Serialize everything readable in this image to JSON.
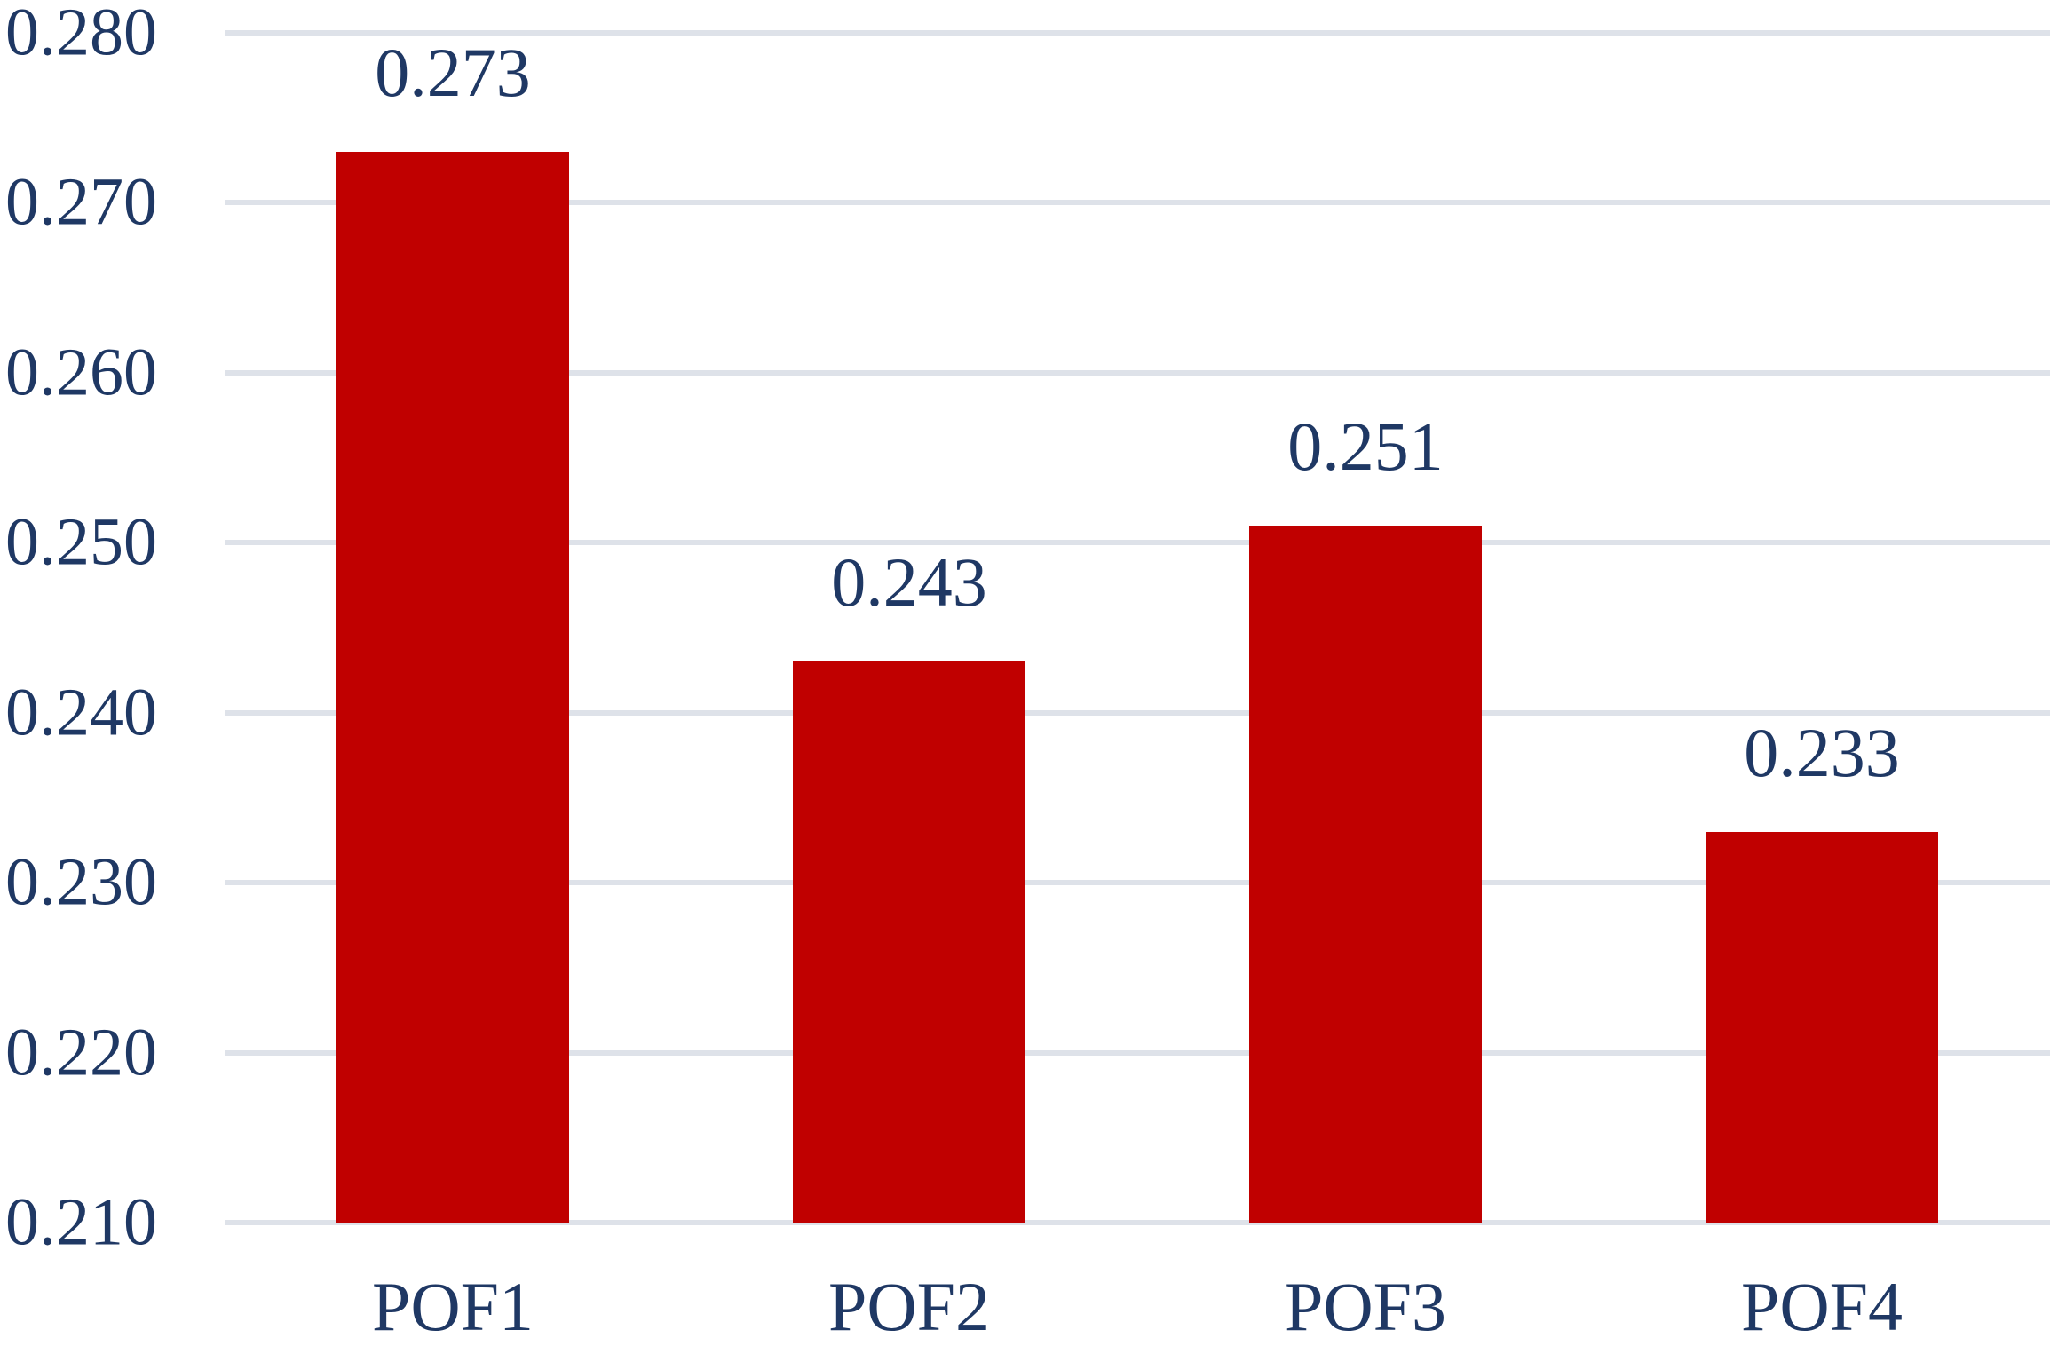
{
  "chart_data": {
    "type": "bar",
    "categories": [
      "POF1",
      "POF2",
      "POF3",
      "POF4"
    ],
    "values": [
      0.273,
      0.243,
      0.251,
      0.233
    ],
    "data_labels": [
      "0.273",
      "0.243",
      "0.251",
      "0.233"
    ],
    "y_ticks": [
      "0.280",
      "0.270",
      "0.260",
      "0.250",
      "0.240",
      "0.230",
      "0.220",
      "0.210"
    ],
    "ylim": [
      0.21,
      0.28
    ],
    "title": "",
    "xlabel": "",
    "ylabel": "",
    "grid": true,
    "legend_position": "none",
    "colors": {
      "bar": "#C00000",
      "text": "#1F3864",
      "gridline": "#DEE2E9",
      "background": "#FFFFFF"
    }
  }
}
